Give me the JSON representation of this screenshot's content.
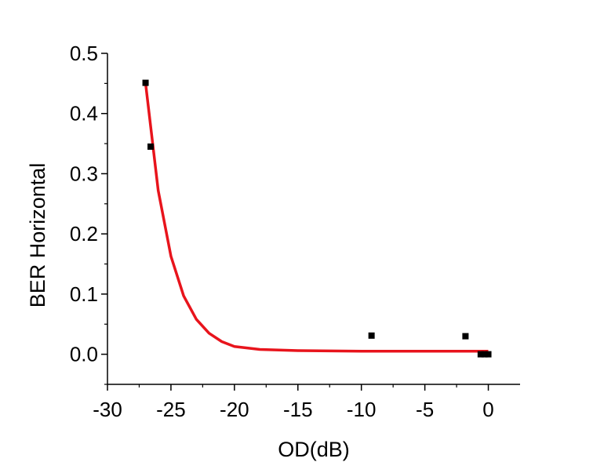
{
  "chart_data": {
    "type": "scatter",
    "title": "",
    "xlabel": "OD(dB)",
    "ylabel": "BER Horizontal",
    "xlim": [
      -30,
      2.5
    ],
    "ylim": [
      -0.05,
      0.5
    ],
    "x_ticks": [
      -30,
      -25,
      -20,
      -15,
      -10,
      -5,
      0
    ],
    "x_tick_labels": [
      "-30",
      "-25",
      "-20",
      "-15",
      "-10",
      "-5",
      "0"
    ],
    "y_ticks": [
      0.0,
      0.1,
      0.2,
      0.3,
      0.4,
      0.5
    ],
    "y_tick_labels": [
      "0.0",
      "0.1",
      "0.2",
      "0.3",
      "0.4",
      "0.5"
    ],
    "grid": false,
    "series": [
      {
        "kind": "scatter",
        "marker": "square",
        "color": "#000000",
        "points": [
          {
            "x": -27.0,
            "y": 0.451
          },
          {
            "x": -26.6,
            "y": 0.345
          },
          {
            "x": -9.2,
            "y": 0.031
          },
          {
            "x": -1.8,
            "y": 0.03
          },
          {
            "x": -0.6,
            "y": 0.0
          },
          {
            "x": -0.3,
            "y": 0.0
          },
          {
            "x": 0.0,
            "y": 0.0
          }
        ]
      },
      {
        "kind": "fit-line",
        "color": "#e8141c",
        "points": [
          {
            "x": -27.0,
            "y": 0.45
          },
          {
            "x": -26.0,
            "y": 0.272
          },
          {
            "x": -25.0,
            "y": 0.163
          },
          {
            "x": -24.0,
            "y": 0.097
          },
          {
            "x": -23.0,
            "y": 0.058
          },
          {
            "x": -22.0,
            "y": 0.035
          },
          {
            "x": -21.0,
            "y": 0.021
          },
          {
            "x": -20.0,
            "y": 0.013
          },
          {
            "x": -18.0,
            "y": 0.008
          },
          {
            "x": -15.0,
            "y": 0.006
          },
          {
            "x": -10.0,
            "y": 0.005
          },
          {
            "x": -5.0,
            "y": 0.005
          },
          {
            "x": 0.0,
            "y": 0.005
          }
        ]
      }
    ]
  }
}
